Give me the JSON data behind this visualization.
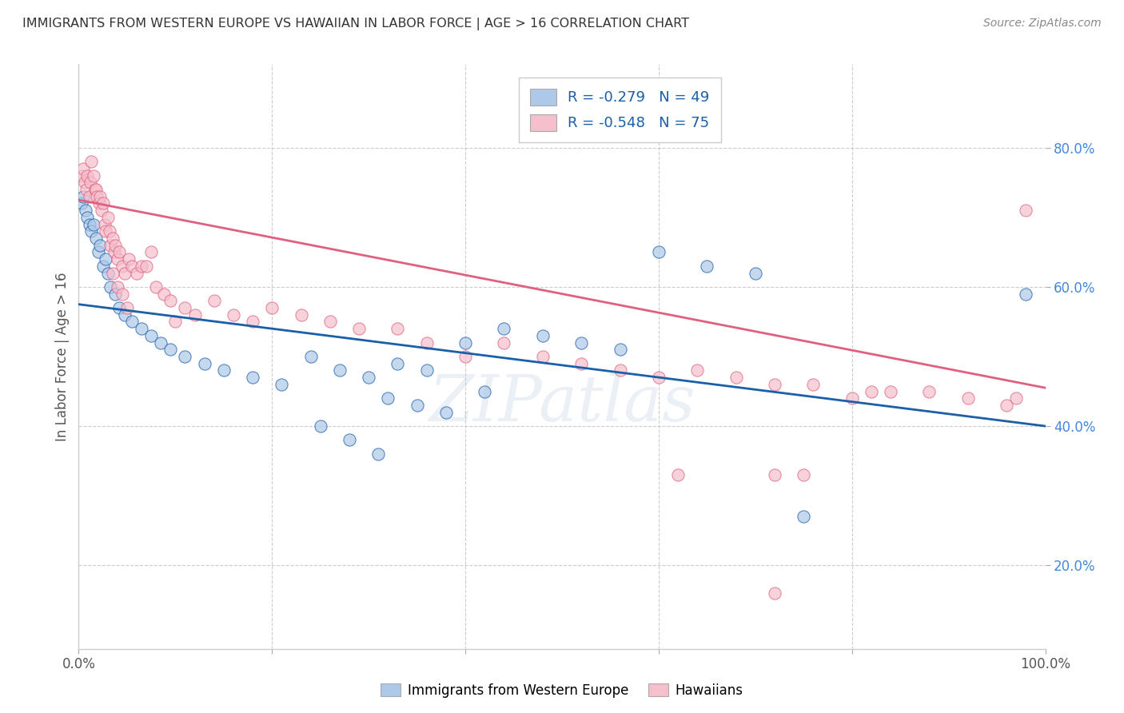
{
  "title": "IMMIGRANTS FROM WESTERN EUROPE VS HAWAIIAN IN LABOR FORCE | AGE > 16 CORRELATION CHART",
  "source": "Source: ZipAtlas.com",
  "ylabel": "In Labor Force | Age > 16",
  "xlim": [
    0.0,
    1.0
  ],
  "ylim": [
    0.08,
    0.92
  ],
  "xticks": [
    0.0,
    0.2,
    0.4,
    0.6,
    0.8,
    1.0
  ],
  "xtick_labels": [
    "0.0%",
    "",
    "",
    "",
    "",
    "100.0%"
  ],
  "yticks": [
    0.2,
    0.4,
    0.6,
    0.8
  ],
  "ytick_labels": [
    "20.0%",
    "40.0%",
    "60.0%",
    "80.0%"
  ],
  "blue_R": "-0.279",
  "blue_N": "49",
  "pink_R": "-0.548",
  "pink_N": "75",
  "blue_color": "#adc8e8",
  "pink_color": "#f5bfcc",
  "blue_line_color": "#1a5fa8",
  "pink_line_color": "#e06080",
  "watermark": "ZIPatlas",
  "blue_scatter_x": [
    0.003,
    0.005,
    0.007,
    0.009,
    0.011,
    0.013,
    0.015,
    0.018,
    0.02,
    0.022,
    0.025,
    0.028,
    0.03,
    0.033,
    0.038,
    0.042,
    0.048,
    0.055,
    0.065,
    0.075,
    0.085,
    0.095,
    0.11,
    0.13,
    0.15,
    0.18,
    0.21,
    0.24,
    0.27,
    0.3,
    0.33,
    0.36,
    0.4,
    0.44,
    0.48,
    0.52,
    0.56,
    0.6,
    0.65,
    0.7,
    0.32,
    0.35,
    0.38,
    0.42,
    0.25,
    0.28,
    0.31,
    0.75,
    0.98
  ],
  "blue_scatter_y": [
    0.72,
    0.73,
    0.71,
    0.7,
    0.69,
    0.68,
    0.69,
    0.67,
    0.65,
    0.66,
    0.63,
    0.64,
    0.62,
    0.6,
    0.59,
    0.57,
    0.56,
    0.55,
    0.54,
    0.53,
    0.52,
    0.51,
    0.5,
    0.49,
    0.48,
    0.47,
    0.46,
    0.5,
    0.48,
    0.47,
    0.49,
    0.48,
    0.52,
    0.54,
    0.53,
    0.52,
    0.51,
    0.65,
    0.63,
    0.62,
    0.44,
    0.43,
    0.42,
    0.45,
    0.4,
    0.38,
    0.36,
    0.27,
    0.59
  ],
  "pink_scatter_x": [
    0.003,
    0.005,
    0.006,
    0.008,
    0.009,
    0.011,
    0.012,
    0.013,
    0.015,
    0.017,
    0.018,
    0.019,
    0.021,
    0.022,
    0.024,
    0.025,
    0.027,
    0.028,
    0.03,
    0.032,
    0.033,
    0.035,
    0.037,
    0.038,
    0.04,
    0.042,
    0.045,
    0.048,
    0.052,
    0.055,
    0.06,
    0.065,
    0.07,
    0.075,
    0.08,
    0.088,
    0.095,
    0.11,
    0.12,
    0.14,
    0.16,
    0.18,
    0.2,
    0.23,
    0.26,
    0.29,
    0.33,
    0.36,
    0.4,
    0.44,
    0.48,
    0.52,
    0.56,
    0.6,
    0.64,
    0.68,
    0.72,
    0.76,
    0.8,
    0.84,
    0.88,
    0.92,
    0.96,
    0.97,
    0.98,
    0.035,
    0.04,
    0.045,
    0.05,
    0.1,
    0.62,
    0.72,
    0.75,
    0.82,
    0.72
  ],
  "pink_scatter_y": [
    0.76,
    0.77,
    0.75,
    0.74,
    0.76,
    0.73,
    0.75,
    0.78,
    0.76,
    0.74,
    0.74,
    0.73,
    0.72,
    0.73,
    0.71,
    0.72,
    0.69,
    0.68,
    0.7,
    0.68,
    0.66,
    0.67,
    0.65,
    0.66,
    0.64,
    0.65,
    0.63,
    0.62,
    0.64,
    0.63,
    0.62,
    0.63,
    0.63,
    0.65,
    0.6,
    0.59,
    0.58,
    0.57,
    0.56,
    0.58,
    0.56,
    0.55,
    0.57,
    0.56,
    0.55,
    0.54,
    0.54,
    0.52,
    0.5,
    0.52,
    0.5,
    0.49,
    0.48,
    0.47,
    0.48,
    0.47,
    0.46,
    0.46,
    0.44,
    0.45,
    0.45,
    0.44,
    0.43,
    0.44,
    0.71,
    0.62,
    0.6,
    0.59,
    0.57,
    0.55,
    0.33,
    0.33,
    0.33,
    0.45,
    0.16
  ],
  "blue_trend_x": [
    0.0,
    1.0
  ],
  "blue_trend_y": [
    0.575,
    0.4
  ],
  "pink_trend_x": [
    0.0,
    1.0
  ],
  "pink_trend_y": [
    0.725,
    0.455
  ],
  "grid_color": "#cccccc",
  "grid_linewidth": 0.8,
  "scatter_size": 120,
  "scatter_alpha": 0.7,
  "trend_linewidth": 2.0
}
